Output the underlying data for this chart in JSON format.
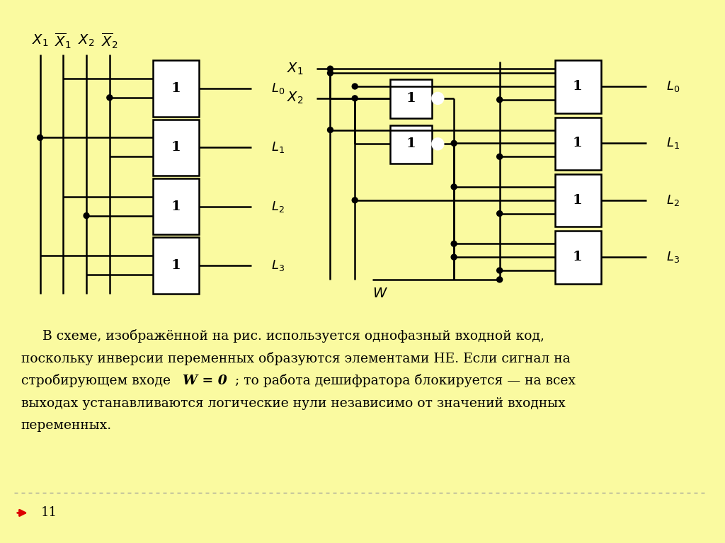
{
  "bg_color": "#FAFAA0",
  "white_color": "#FFFFFF",
  "black_color": "#000000",
  "fig_width": 10.24,
  "fig_height": 7.67,
  "text_line1": "     В схеме, изображённой на рис. используется однофазный входной код,",
  "text_line2": "поскольку инверсии переменных образуются элементами НЕ. Если сигнал на",
  "text_line3": "стробирующем входе ",
  "text_line3b": "W = 0",
  "text_line3c": "; то работа дешифратора блокируется — на всех",
  "text_line4": "выходах устанавливаются логические нули независимо от значений входных",
  "text_line5": "переменных.",
  "page_number": "11"
}
